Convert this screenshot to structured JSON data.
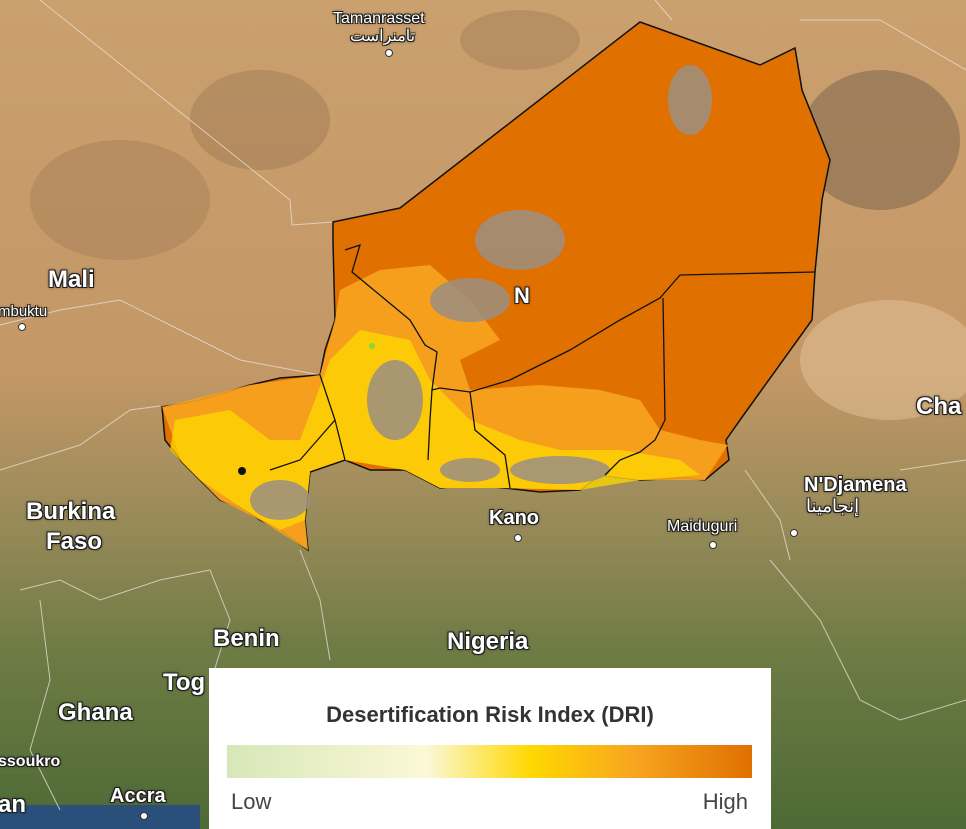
{
  "places": {
    "tamanrasset": "Tamanrasset",
    "tamanrasset_ar": "تامنراست",
    "mali": "Mali",
    "timbuktu": "mbuktu",
    "burkina_1": "Burkina",
    "burkina_2": "Faso",
    "kano": "Kano",
    "maiduguri": "Maiduguri",
    "ndjamena": "N'Djamena",
    "ndjamena_ar": "إنجامينا",
    "chad": "Cha",
    "benin": "Benin",
    "nigeria": "Nigeria",
    "togo": "Tog",
    "ghana": "Ghana",
    "yamoussoukro": "ssoukro",
    "accra": "Accra",
    "abidjan": "an",
    "niger_partial": "N"
  },
  "legend": {
    "title": "Desertification Risk Index (DRI)",
    "low": "Low",
    "high": "High",
    "colors": [
      "#d7e7b8",
      "#fbf8d6",
      "#ffd800",
      "#f7a420",
      "#e07000"
    ]
  },
  "colors": {
    "dri_high": "#e07000",
    "dri_medium": "#f7a420",
    "dri_low": "#ffd800",
    "no_data": "#9b8f82"
  }
}
